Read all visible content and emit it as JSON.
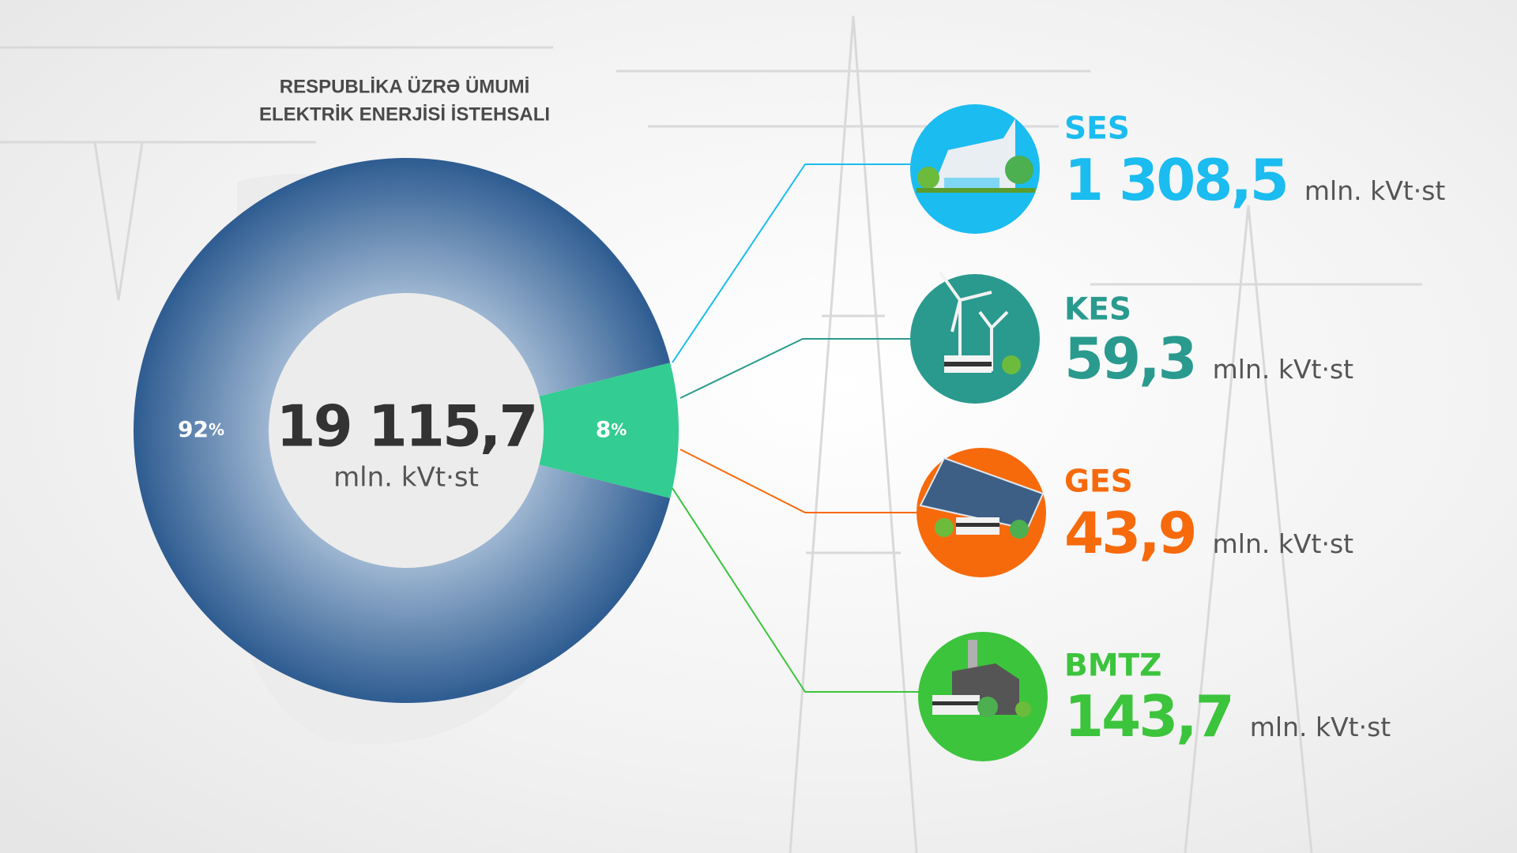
{
  "chart_data": {
    "type": "pie",
    "donut": true,
    "title": [
      "RESPUBLİKA ÜZRƏ ÜMUMİ",
      "ELEKTRİK ENERJİSİ İSTEHSALI"
    ],
    "values": [
      92,
      8
    ],
    "value_labels": [
      "92%",
      "8%"
    ],
    "colors": [
      "#2e5c91",
      "#33cc92"
    ],
    "center_value": "19 115,7",
    "center_unit": "mln. kVt·st",
    "breakdown": [
      {
        "name": "SES",
        "value": "1 308,5",
        "unit": "mln. kVt·st",
        "color": "#1bbcef"
      },
      {
        "name": "KES",
        "value": "59,3",
        "unit": "mln. kVt·st",
        "color": "#2a9a8e"
      },
      {
        "name": "GES",
        "value": "43,9",
        "unit": "mln. kVt·st",
        "color": "#f76a0c"
      },
      {
        "name": "BMTZ",
        "value": "143,7",
        "unit": "mln. kVt·st",
        "color": "#3cc43c"
      }
    ]
  }
}
